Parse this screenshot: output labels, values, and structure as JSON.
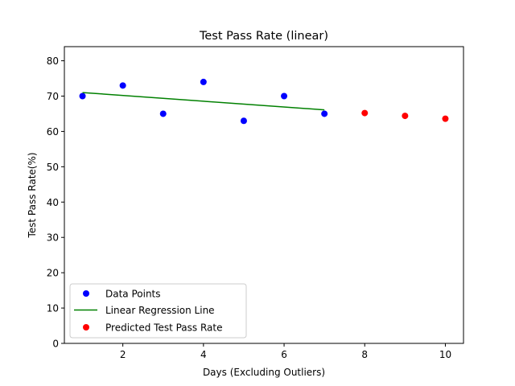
{
  "chart_data": {
    "type": "scatter",
    "title": "Test Pass Rate (linear)",
    "xlabel": "Days (Excluding Outliers)",
    "ylabel": "Test Pass Rate(%)",
    "xlim": [
      0.55,
      10.45
    ],
    "ylim": [
      0,
      84
    ],
    "xticks": [
      2,
      4,
      6,
      8,
      10
    ],
    "yticks": [
      0,
      10,
      20,
      30,
      40,
      50,
      60,
      70,
      80
    ],
    "grid": false,
    "legend_position": "lower-left",
    "series": [
      {
        "name": "Data Points",
        "kind": "scatter",
        "color": "#0000ff",
        "points": [
          {
            "x": 1,
            "y": 70
          },
          {
            "x": 2,
            "y": 73
          },
          {
            "x": 3,
            "y": 65
          },
          {
            "x": 4,
            "y": 74
          },
          {
            "x": 5,
            "y": 63
          },
          {
            "x": 6,
            "y": 70
          },
          {
            "x": 7,
            "y": 65
          }
        ]
      },
      {
        "name": "Linear Regression Line",
        "kind": "line",
        "color": "#008000",
        "points": [
          {
            "x": 1,
            "y": 71
          },
          {
            "x": 7,
            "y": 66.1
          }
        ]
      },
      {
        "name": "Predicted Test Pass Rate",
        "kind": "scatter",
        "color": "#ff0000",
        "points": [
          {
            "x": 8,
            "y": 65.2
          },
          {
            "x": 9,
            "y": 64.4
          },
          {
            "x": 10,
            "y": 63.6
          }
        ]
      }
    ]
  }
}
